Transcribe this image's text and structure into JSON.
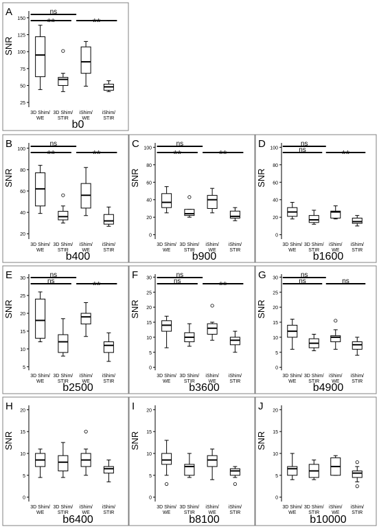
{
  "figure": {
    "categories": [
      "3D Shim/ WE",
      "3D Shim/ STIR",
      "iShim/ WE",
      "iShim/ STIR"
    ],
    "ylabel": "SNR"
  },
  "chart_data": [
    {
      "type": "box",
      "panel": "A",
      "title": "b0",
      "ylabel": "SNR",
      "ylim": [
        18,
        160
      ],
      "yticks": [
        25,
        50,
        75,
        100,
        125,
        150
      ],
      "series": [
        {
          "category": "3D Shim/ WE",
          "min": 44,
          "q1": 63,
          "median": 95,
          "q3": 122,
          "max": 139,
          "outliers": []
        },
        {
          "category": "3D Shim/ STIR",
          "min": 41,
          "q1": 50,
          "median": 59,
          "q3": 62,
          "max": 68,
          "outliers": [
            101
          ]
        },
        {
          "category": "iShim/ WE",
          "min": 49,
          "q1": 68,
          "median": 85,
          "q3": 107,
          "max": 115,
          "outliers": []
        },
        {
          "category": "iShim/ STIR",
          "min": 41,
          "q1": 43,
          "median": 48,
          "q3": 52,
          "max": 57,
          "outliers": []
        }
      ],
      "annotations": [
        {
          "label": "ns",
          "from": 0,
          "to": 2,
          "level": 1
        },
        {
          "label": "**",
          "from": 0,
          "to": 1,
          "level": 0
        },
        {
          "label": "**",
          "from": 2,
          "to": 3,
          "level": 0
        }
      ]
    },
    {
      "type": "box",
      "panel": "B",
      "title": "b400",
      "ylabel": "SNR",
      "ylim": [
        15,
        105
      ],
      "yticks": [
        20,
        40,
        60,
        80,
        100
      ],
      "series": [
        {
          "category": "3D Shim/ WE",
          "min": 39,
          "q1": 46,
          "median": 62,
          "q3": 77,
          "max": 84,
          "outliers": []
        },
        {
          "category": "3D Shim/ STIR",
          "min": 30,
          "q1": 33,
          "median": 36,
          "q3": 41,
          "max": 46,
          "outliers": [
            56
          ]
        },
        {
          "category": "iShim/ WE",
          "min": 37,
          "q1": 44,
          "median": 56,
          "q3": 67,
          "max": 82,
          "outliers": []
        },
        {
          "category": "iShim/ STIR",
          "min": 27,
          "q1": 29,
          "median": 32,
          "q3": 38,
          "max": 45,
          "outliers": []
        }
      ],
      "annotations": [
        {
          "label": "ns",
          "from": 0,
          "to": 2,
          "level": 1
        },
        {
          "label": "**",
          "from": 0,
          "to": 1,
          "level": 0
        },
        {
          "label": "**",
          "from": 2,
          "to": 3,
          "level": 0
        }
      ]
    },
    {
      "type": "box",
      "panel": "C",
      "title": "b900",
      "ylabel": "SNR",
      "ylim": [
        -5,
        105
      ],
      "yticks": [
        0,
        20,
        40,
        60,
        80,
        100
      ],
      "series": [
        {
          "category": "3D Shim/ WE",
          "min": 25,
          "q1": 31,
          "median": 37,
          "q3": 47,
          "max": 55,
          "outliers": []
        },
        {
          "category": "3D Shim/ STIR",
          "min": 20,
          "q1": 22,
          "median": 24,
          "q3": 29,
          "max": 29,
          "outliers": [
            43
          ]
        },
        {
          "category": "iShim/ WE",
          "min": 25,
          "q1": 30,
          "median": 40,
          "q3": 45,
          "max": 53,
          "outliers": []
        },
        {
          "category": "iShim/ STIR",
          "min": 16,
          "q1": 19,
          "median": 21,
          "q3": 27,
          "max": 31,
          "outliers": []
        }
      ],
      "annotations": [
        {
          "label": "ns",
          "from": 0,
          "to": 2,
          "level": 1
        },
        {
          "label": "**",
          "from": 0,
          "to": 1,
          "level": 0
        },
        {
          "label": "**",
          "from": 2,
          "to": 3,
          "level": 0
        }
      ]
    },
    {
      "type": "box",
      "panel": "D",
      "title": "b1600",
      "ylabel": "SNR",
      "ylim": [
        -5,
        105
      ],
      "yticks": [
        0,
        20,
        40,
        60,
        80,
        100
      ],
      "series": [
        {
          "category": "3D Shim/ WE",
          "min": 18,
          "q1": 21,
          "median": 26,
          "q3": 31,
          "max": 37,
          "outliers": []
        },
        {
          "category": "3D Shim/ STIR",
          "min": 12,
          "q1": 14,
          "median": 17,
          "q3": 22,
          "max": 28,
          "outliers": []
        },
        {
          "category": "iShim/ WE",
          "min": 18,
          "q1": 19,
          "median": 26,
          "q3": 27,
          "max": 33,
          "outliers": []
        },
        {
          "category": "iShim/ STIR",
          "min": 10,
          "q1": 13,
          "median": 15,
          "q3": 19,
          "max": 22,
          "outliers": []
        }
      ],
      "annotations": [
        {
          "label": "ns",
          "from": 0,
          "to": 2,
          "level": 1
        },
        {
          "label": "ns",
          "from": 0,
          "to": 1,
          "level": 0
        },
        {
          "label": "**",
          "from": 2,
          "to": 3,
          "level": 0
        }
      ]
    },
    {
      "type": "box",
      "panel": "E",
      "title": "b2500",
      "ylabel": "SNR",
      "ylim": [
        4,
        31
      ],
      "yticks": [
        5,
        10,
        15,
        20,
        25,
        30
      ],
      "series": [
        {
          "category": "3D Shim/ WE",
          "min": 12,
          "q1": 13,
          "median": 18,
          "q3": 24,
          "max": 26,
          "outliers": []
        },
        {
          "category": "3D Shim/ STIR",
          "min": 8,
          "q1": 9,
          "median": 12,
          "q3": 14,
          "max": 18.5,
          "outliers": []
        },
        {
          "category": "iShim/ WE",
          "min": 13.5,
          "q1": 17,
          "median": 19,
          "q3": 20,
          "max": 23,
          "outliers": []
        },
        {
          "category": "iShim/ STIR",
          "min": 6.5,
          "q1": 9,
          "median": 11,
          "q3": 12,
          "max": 14.5,
          "outliers": []
        }
      ],
      "annotations": [
        {
          "label": "ns",
          "from": 0,
          "to": 2,
          "level": 1
        },
        {
          "label": "ns",
          "from": 0,
          "to": 1,
          "level": 0
        },
        {
          "label": "**",
          "from": 2,
          "to": 3,
          "level": 0
        }
      ]
    },
    {
      "type": "box",
      "panel": "F",
      "title": "b3600",
      "ylabel": "SNR",
      "ylim": [
        -1,
        31
      ],
      "yticks": [
        0,
        5,
        10,
        15,
        20,
        25,
        30
      ],
      "series": [
        {
          "category": "3D Shim/ WE",
          "min": 6.5,
          "q1": 12,
          "median": 14,
          "q3": 15.5,
          "max": 17,
          "outliers": []
        },
        {
          "category": "3D Shim/ STIR",
          "min": 7,
          "q1": 8.5,
          "median": 10,
          "q3": 11.5,
          "max": 14.5,
          "outliers": []
        },
        {
          "category": "iShim/ WE",
          "min": 9,
          "q1": 11,
          "median": 13,
          "q3": 14.5,
          "max": 15,
          "outliers": [
            20.5
          ]
        },
        {
          "category": "iShim/ STIR",
          "min": 5,
          "q1": 7.5,
          "median": 9,
          "q3": 10,
          "max": 12,
          "outliers": []
        }
      ],
      "annotations": [
        {
          "label": "ns",
          "from": 0,
          "to": 2,
          "level": 1
        },
        {
          "label": "ns",
          "from": 0,
          "to": 1,
          "level": 0
        },
        {
          "label": "**",
          "from": 2,
          "to": 3,
          "level": 0
        }
      ]
    },
    {
      "type": "box",
      "panel": "G",
      "title": "b4900",
      "ylabel": "SNR",
      "ylim": [
        -1,
        31
      ],
      "yticks": [
        0,
        5,
        10,
        15,
        20,
        25,
        30
      ],
      "series": [
        {
          "category": "3D Shim/ WE",
          "min": 6,
          "q1": 10,
          "median": 12,
          "q3": 14,
          "max": 16,
          "outliers": []
        },
        {
          "category": "3D Shim/ STIR",
          "min": 5.5,
          "q1": 6.5,
          "median": 8,
          "q3": 9.5,
          "max": 11,
          "outliers": []
        },
        {
          "category": "iShim/ WE",
          "min": 6,
          "q1": 8.5,
          "median": 10,
          "q3": 10.5,
          "max": 12.5,
          "outliers": [
            15.5
          ]
        },
        {
          "category": "iShim/ STIR",
          "min": 4,
          "q1": 6,
          "median": 7.5,
          "q3": 8.5,
          "max": 10,
          "outliers": []
        }
      ],
      "annotations": [
        {
          "label": "ns",
          "from": 0,
          "to": 2,
          "level": 1
        },
        {
          "label": "ns",
          "from": 0,
          "to": 1,
          "level": 0
        },
        {
          "label": "ns",
          "from": 2,
          "to": 3,
          "level": 0
        }
      ]
    },
    {
      "type": "box",
      "panel": "H",
      "title": "b6400",
      "ylabel": "SNR",
      "ylim": [
        -1,
        21
      ],
      "yticks": [
        0,
        5,
        10,
        15,
        20
      ],
      "series": [
        {
          "category": "3D Shim/ WE",
          "min": 4.5,
          "q1": 7,
          "median": 8.5,
          "q3": 10,
          "max": 11,
          "outliers": []
        },
        {
          "category": "3D Shim/ STIR",
          "min": 4.5,
          "q1": 6,
          "median": 8,
          "q3": 9.5,
          "max": 12.5,
          "outliers": []
        },
        {
          "category": "iShim/ WE",
          "min": 5,
          "q1": 7,
          "median": 8.5,
          "q3": 10,
          "max": 11,
          "outliers": [
            15
          ]
        },
        {
          "category": "iShim/ STIR",
          "min": 3.5,
          "q1": 5.5,
          "median": 6.5,
          "q3": 7,
          "max": 8.5,
          "outliers": []
        }
      ],
      "annotations": []
    },
    {
      "type": "box",
      "panel": "I",
      "title": "b8100",
      "ylabel": "SNR",
      "ylim": [
        -1,
        21
      ],
      "yticks": [
        0,
        5,
        10,
        15,
        20
      ],
      "series": [
        {
          "category": "3D Shim/ WE",
          "min": 5,
          "q1": 7.5,
          "median": 8.5,
          "q3": 10,
          "max": 13,
          "outliers": [
            3
          ]
        },
        {
          "category": "3D Shim/ STIR",
          "min": 4.5,
          "q1": 5,
          "median": 7,
          "q3": 7.5,
          "max": 10,
          "outliers": []
        },
        {
          "category": "iShim/ WE",
          "min": 4,
          "q1": 7,
          "median": 8.5,
          "q3": 9.5,
          "max": 11,
          "outliers": []
        },
        {
          "category": "iShim/ STIR",
          "min": 4.5,
          "q1": 5,
          "median": 6,
          "q3": 6.5,
          "max": 7,
          "outliers": [
            3
          ]
        }
      ],
      "annotations": []
    },
    {
      "type": "box",
      "panel": "J",
      "title": "b10000",
      "ylabel": "SNR",
      "ylim": [
        -1,
        21
      ],
      "yticks": [
        0,
        5,
        10,
        15,
        20
      ],
      "series": [
        {
          "category": "3D Shim/ WE",
          "min": 4,
          "q1": 5,
          "median": 6.5,
          "q3": 7,
          "max": 10,
          "outliers": []
        },
        {
          "category": "3D Shim/ STIR",
          "min": 4,
          "q1": 4.5,
          "median": 6,
          "q3": 7.5,
          "max": 8.5,
          "outliers": []
        },
        {
          "category": "iShim/ WE",
          "min": 5,
          "q1": 5,
          "median": 7,
          "q3": 9,
          "max": 9.5,
          "outliers": []
        },
        {
          "category": "iShim/ STIR",
          "min": 3.5,
          "q1": 4.5,
          "median": 5.5,
          "q3": 6,
          "max": 7,
          "outliers": [
            2.5,
            8
          ]
        }
      ],
      "annotations": []
    }
  ]
}
